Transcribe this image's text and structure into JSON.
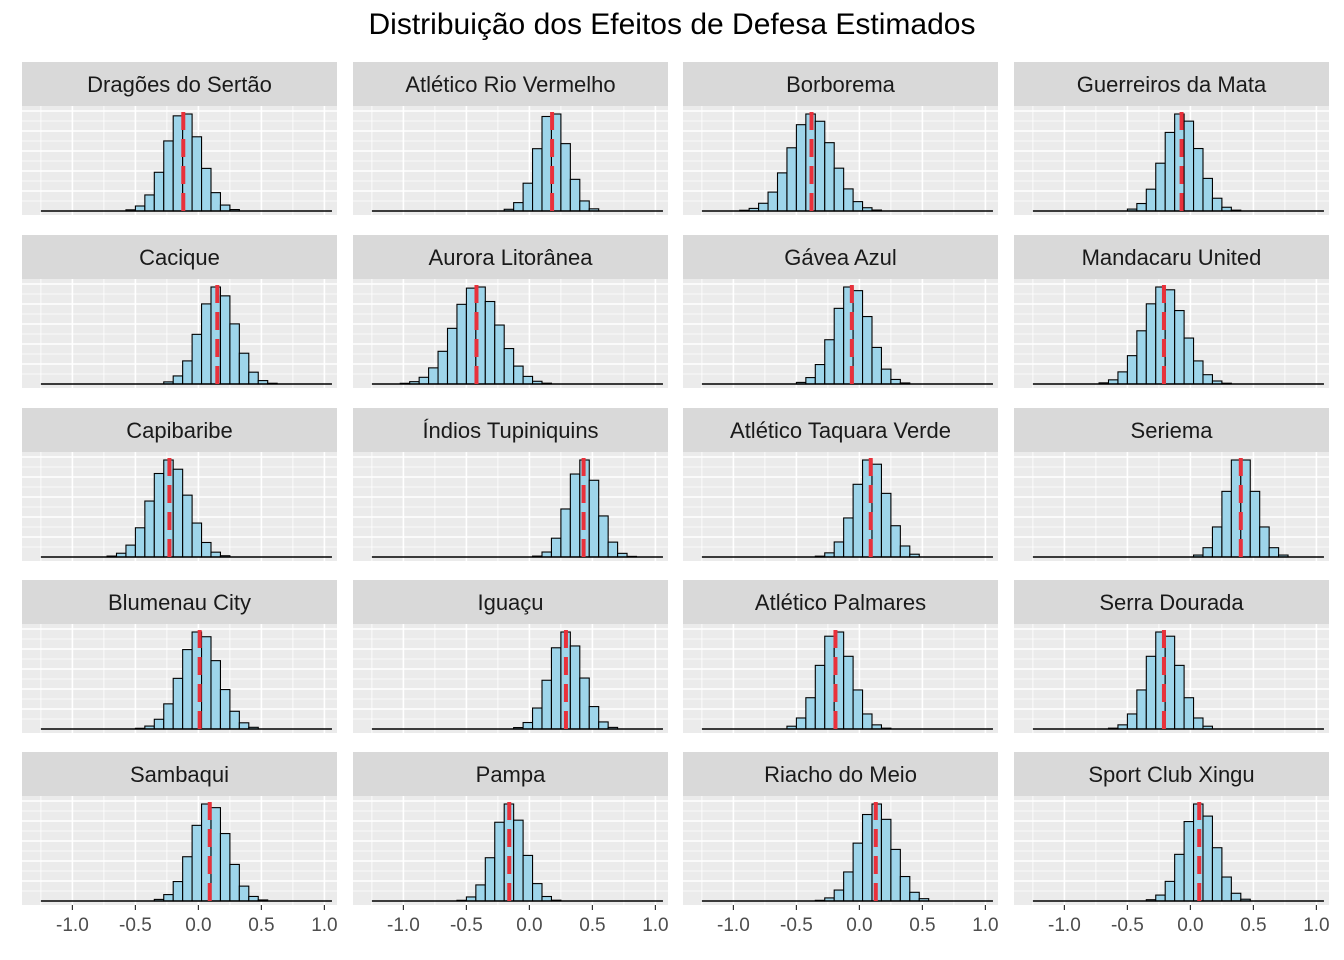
{
  "chart_data": {
    "type": "bar",
    "title": "Distribuição dos Efeitos de Defesa Estimados",
    "xlabel": "",
    "ylabel": "",
    "xlim": [
      -1.4,
      1.1
    ],
    "x_ticks": [
      "-1.0",
      "-0.5",
      "0.0",
      "0.5",
      "1.0"
    ],
    "x_tick_values": [
      -1.0,
      -0.5,
      0.0,
      0.5,
      1.0
    ],
    "grid": true,
    "legend": "none",
    "bin_width": 0.075,
    "colors": {
      "bar_fill": "#9ED5EA",
      "bar_stroke": "#000000",
      "mean_line": "#E8313B",
      "panel_bg": "#EBEBEB",
      "strip_bg": "#D9D9D9"
    },
    "panels": [
      {
        "name": "Dragões do Sertão",
        "mean": -0.12,
        "sd": 0.14
      },
      {
        "name": "Atlético Rio Vermelho",
        "mean": 0.18,
        "sd": 0.12
      },
      {
        "name": "Borborema",
        "mean": -0.38,
        "sd": 0.17
      },
      {
        "name": "Guerreiros da Mata",
        "mean": -0.07,
        "sd": 0.14
      },
      {
        "name": "Cacique",
        "mean": 0.15,
        "sd": 0.14
      },
      {
        "name": "Aurora Litorânea",
        "mean": -0.42,
        "sd": 0.18
      },
      {
        "name": "Gávea Azul",
        "mean": -0.06,
        "sd": 0.14
      },
      {
        "name": "Mandacaru United",
        "mean": -0.21,
        "sd": 0.16
      },
      {
        "name": "Capibaribe",
        "mean": -0.23,
        "sd": 0.15
      },
      {
        "name": "Índios Tupiniquins",
        "mean": 0.43,
        "sd": 0.12
      },
      {
        "name": "Atlético Taquara Verde",
        "mean": 0.09,
        "sd": 0.13
      },
      {
        "name": "Seriema",
        "mean": 0.4,
        "sd": 0.12
      },
      {
        "name": "Blumenau City",
        "mean": 0.01,
        "sd": 0.15
      },
      {
        "name": "Iguaçu",
        "mean": 0.29,
        "sd": 0.13
      },
      {
        "name": "Atlético Palmares",
        "mean": -0.19,
        "sd": 0.13
      },
      {
        "name": "Serra Dourada",
        "mean": -0.21,
        "sd": 0.13
      },
      {
        "name": "Sambaqui",
        "mean": 0.09,
        "sd": 0.14
      },
      {
        "name": "Pampa",
        "mean": -0.16,
        "sd": 0.12
      },
      {
        "name": "Riacho do Meio",
        "mean": 0.13,
        "sd": 0.14
      },
      {
        "name": "Sport Club Xingu",
        "mean": 0.07,
        "sd": 0.13
      }
    ]
  }
}
